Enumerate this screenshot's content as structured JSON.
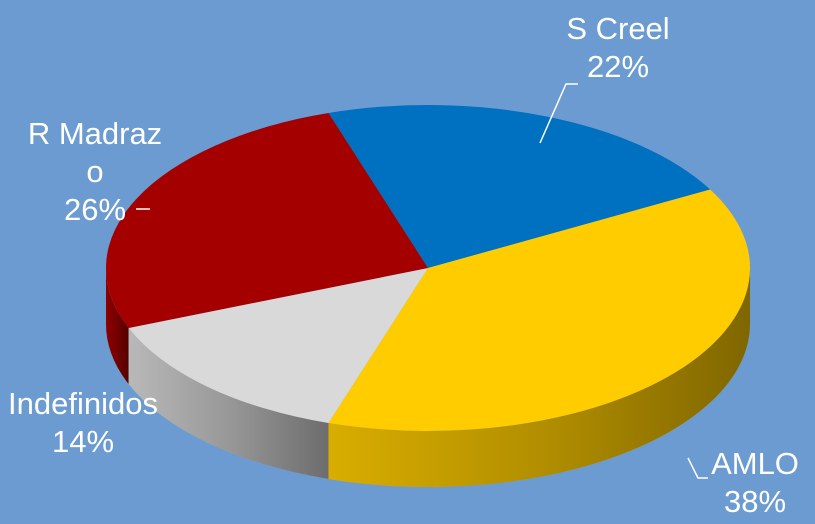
{
  "chart_data": {
    "type": "pie",
    "categories": [
      "S Creel",
      "AMLO",
      "Indefinidos",
      "R Madrazo"
    ],
    "values": [
      22,
      38,
      14,
      26
    ],
    "value_labels": [
      "22%",
      "38%",
      "14%",
      "26%"
    ],
    "colors": [
      "#0070c0",
      "#ffcc00",
      "#d9d9d9",
      "#a50000"
    ]
  }
}
